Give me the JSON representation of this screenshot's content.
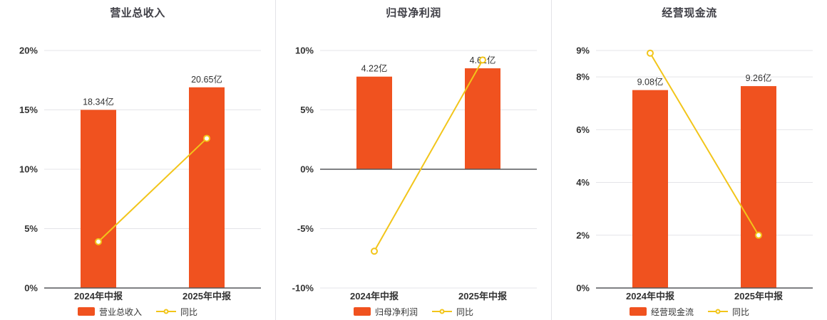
{
  "colors": {
    "bar": "#f0521f",
    "line": "#f2c51a",
    "grid": "#e4e4e8",
    "axis": "#55565a",
    "text": "#333333",
    "title": "#3f3f46"
  },
  "legend": {
    "line_label": "同比"
  },
  "chart_data": [
    {
      "type": "bar",
      "title": "营业总收入",
      "categories": [
        "2024年中报",
        "2025年中报"
      ],
      "ylim": [
        0,
        20
      ],
      "yticks": [
        0,
        5,
        10,
        15,
        20
      ],
      "grid": true,
      "legend_position": "bottom",
      "bars": {
        "name": "营业总收入",
        "labels": [
          "18.34亿",
          "20.65亿"
        ],
        "heights_pct": [
          15.0,
          16.9
        ]
      },
      "line": {
        "name": "同比",
        "values_pct": [
          3.9,
          12.6
        ]
      }
    },
    {
      "type": "bar",
      "title": "归母净利润",
      "categories": [
        "2024年中报",
        "2025年中报"
      ],
      "ylim": [
        -10,
        10
      ],
      "yticks": [
        -10,
        -5,
        0,
        5,
        10
      ],
      "grid": true,
      "legend_position": "bottom",
      "bars": {
        "name": "归母净利润",
        "labels": [
          "4.22亿",
          "4.61亿"
        ],
        "heights_pct": [
          7.8,
          8.5
        ]
      },
      "line": {
        "name": "同比",
        "values_pct": [
          -6.9,
          9.2
        ]
      }
    },
    {
      "type": "bar",
      "title": "经营现金流",
      "categories": [
        "2024年中报",
        "2025年中报"
      ],
      "ylim": [
        0,
        9
      ],
      "yticks": [
        0,
        2,
        4,
        6,
        8,
        9
      ],
      "grid": true,
      "legend_position": "bottom",
      "bars": {
        "name": "经营现金流",
        "labels": [
          "9.08亿",
          "9.26亿"
        ],
        "heights_pct": [
          7.5,
          7.65
        ]
      },
      "line": {
        "name": "同比",
        "values_pct": [
          8.9,
          2.0
        ]
      }
    }
  ]
}
